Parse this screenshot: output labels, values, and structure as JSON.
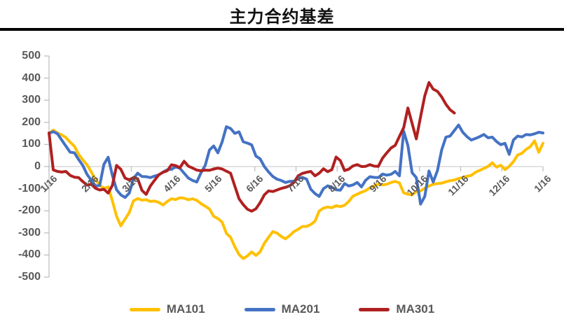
{
  "title": "主力合约基差",
  "colors": {
    "ma101": "#FFC000",
    "ma201": "#4472C4",
    "ma301": "#B02020",
    "axis_text": "#595959",
    "axis_line": "#BFBFBF",
    "zero_gridline": "#D9D9D9",
    "title_rule": "#000000"
  },
  "legend": [
    {
      "label": "MA101",
      "color": "#FFC000"
    },
    {
      "label": "MA201",
      "color": "#4472C4"
    },
    {
      "label": "MA301",
      "color": "#B02020"
    }
  ],
  "chart_data": {
    "type": "line",
    "title": "主力合约基差",
    "xlabel": "",
    "ylabel": "",
    "ylim": [
      -500,
      500
    ],
    "y_ticks": [
      500,
      400,
      300,
      200,
      100,
      0,
      -100,
      -200,
      -300,
      -400,
      -500
    ],
    "x_tick_labels": [
      "1/16",
      "2/16",
      "3/16",
      "4/16",
      "5/16",
      "6/16",
      "7/16",
      "8/16",
      "9/16",
      "10/16",
      "11/16",
      "12/16",
      "1/16"
    ],
    "grid": "zero-line-only",
    "legend_position": "bottom",
    "series": [
      {
        "name": "MA101",
        "color": "#FFC000",
        "values": [
          150,
          165,
          152,
          143,
          131,
          110,
          92,
          55,
          30,
          8,
          -25,
          -58,
          -85,
          -98,
          -92,
          -155,
          -225,
          -268,
          -238,
          -208,
          -155,
          -145,
          -152,
          -150,
          -158,
          -156,
          -162,
          -174,
          -158,
          -146,
          -149,
          -141,
          -143,
          -150,
          -146,
          -153,
          -168,
          -179,
          -192,
          -225,
          -235,
          -252,
          -302,
          -320,
          -362,
          -398,
          -416,
          -404,
          -386,
          -402,
          -385,
          -347,
          -320,
          -294,
          -301,
          -316,
          -327,
          -312,
          -294,
          -284,
          -271,
          -271,
          -262,
          -247,
          -201,
          -188,
          -183,
          -186,
          -177,
          -181,
          -175,
          -158,
          -134,
          -125,
          -116,
          -109,
          -96,
          -87,
          -80,
          -83,
          -80,
          -72,
          -67,
          -74,
          -119,
          -125,
          -128,
          -113,
          -110,
          -98,
          -88,
          -80,
          -77,
          -75,
          -69,
          -64,
          -61,
          -54,
          -49,
          -44,
          -40,
          -26,
          -17,
          -9,
          1,
          17,
          -3,
          6,
          -14,
          1,
          22,
          52,
          60,
          78,
          90,
          116,
          65,
          105
        ]
      },
      {
        "name": "MA201",
        "color": "#4472C4",
        "values": [
          150,
          158,
          148,
          120,
          92,
          65,
          62,
          32,
          5,
          -35,
          -62,
          -88,
          -85,
          10,
          42,
          -40,
          -105,
          -128,
          -140,
          -120,
          -55,
          -30,
          -45,
          -46,
          -50,
          -43,
          -38,
          -25,
          -15,
          -12,
          -2,
          -8,
          -30,
          -52,
          -63,
          -70,
          -28,
          5,
          75,
          93,
          62,
          112,
          180,
          172,
          150,
          157,
          112,
          106,
          98,
          47,
          35,
          0,
          -24,
          -45,
          -57,
          -63,
          -72,
          -67,
          -66,
          -55,
          -49,
          -57,
          -103,
          -122,
          -135,
          -100,
          -87,
          -94,
          -105,
          -107,
          -77,
          -88,
          -83,
          -72,
          -92,
          -62,
          -46,
          -49,
          -50,
          -34,
          -39,
          -35,
          -22,
          -42,
          160,
          95,
          -28,
          -50,
          -170,
          -135,
          -20,
          -70,
          -18,
          75,
          133,
          138,
          163,
          188,
          155,
          135,
          120,
          127,
          135,
          145,
          130,
          133,
          113,
          99,
          105,
          55,
          120,
          138,
          134,
          145,
          143,
          148,
          155,
          152
        ]
      },
      {
        "name": "MA301",
        "color": "#B02020",
        "values": [
          152,
          -15,
          -22,
          -25,
          -22,
          -40,
          -48,
          -50,
          -68,
          -84,
          -80,
          -98,
          -106,
          -103,
          -120,
          -85,
          5,
          -12,
          -52,
          -60,
          -50,
          -55,
          -108,
          -126,
          -88,
          -62,
          -37,
          -26,
          -19,
          8,
          4,
          -5,
          24,
          2,
          -7,
          -16,
          -19,
          -16,
          -17,
          -11,
          -7,
          -11,
          -21,
          -30,
          -88,
          -146,
          -172,
          -193,
          -202,
          -191,
          -163,
          -128,
          -110,
          -113,
          -106,
          -99,
          -94,
          -87,
          -72,
          -42,
          -31,
          -26,
          -22,
          -42,
          -30,
          -10,
          -23,
          -14,
          43,
          27,
          -18,
          -12,
          3,
          9,
          0,
          1,
          9,
          2,
          1,
          38,
          62,
          84,
          96,
          136,
          176,
          265,
          195,
          125,
          225,
          320,
          380,
          350,
          340,
          315,
          282,
          257,
          242,
          null,
          null,
          null,
          null,
          null,
          null,
          null,
          null,
          null,
          null,
          null,
          null,
          null,
          null,
          null,
          null,
          null,
          null,
          null,
          null,
          null
        ]
      }
    ]
  }
}
